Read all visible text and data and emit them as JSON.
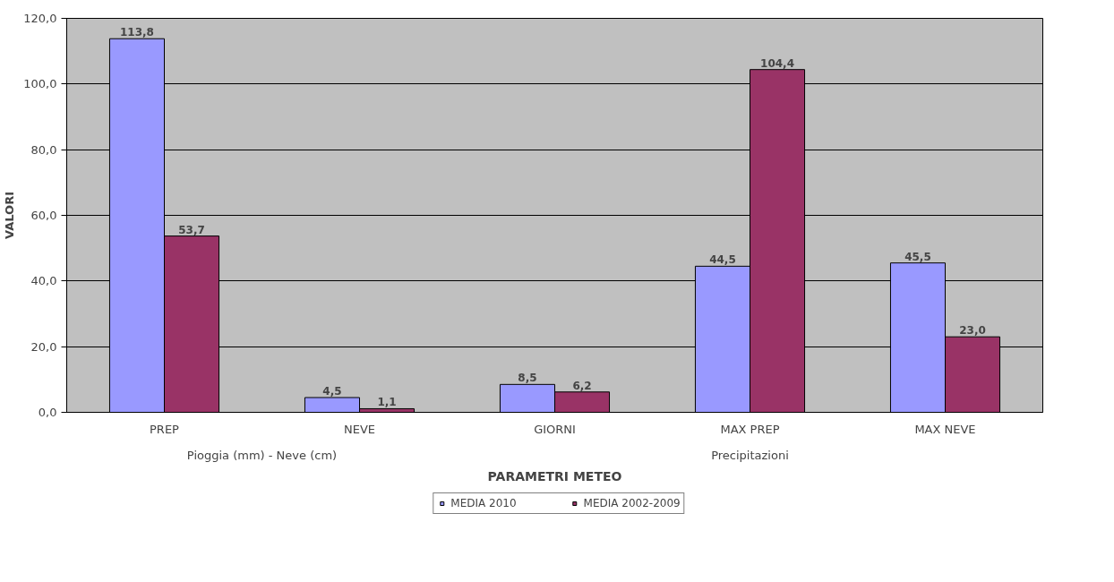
{
  "chart_data": {
    "type": "bar",
    "xlabel": "PARAMETRI METEO",
    "ylabel": "VALORI",
    "categories": [
      "PREP",
      "NEVE",
      "GIORNI",
      "MAX PREP",
      "MAX NEVE"
    ],
    "series": [
      {
        "name": "MEDIA 2010",
        "color": "#9999ff",
        "values": [
          113.8,
          4.5,
          8.5,
          44.5,
          45.5
        ],
        "value_labels": [
          "113,8",
          "4,5",
          "8,5",
          "44,5",
          "45,5"
        ]
      },
      {
        "name": "MEDIA 2002-2009",
        "color": "#993366",
        "values": [
          53.7,
          1.1,
          6.2,
          104.4,
          23.0
        ],
        "value_labels": [
          "53,7",
          "1,1",
          "6,2",
          "104,4",
          "23,0"
        ]
      }
    ],
    "annotations": [
      "Pioggia (mm) - Neve (cm)",
      "Precipitazioni"
    ],
    "ylim": [
      0,
      120
    ],
    "yticks": [
      {
        "value": 0,
        "label": "0,0"
      },
      {
        "value": 20,
        "label": "20,0"
      },
      {
        "value": 40,
        "label": "40,0"
      },
      {
        "value": 60,
        "label": "60,0"
      },
      {
        "value": 80,
        "label": "80,0"
      },
      {
        "value": 100,
        "label": "100,0"
      },
      {
        "value": 120,
        "label": "120,0"
      }
    ],
    "grid": "y",
    "legend": "bottom"
  }
}
